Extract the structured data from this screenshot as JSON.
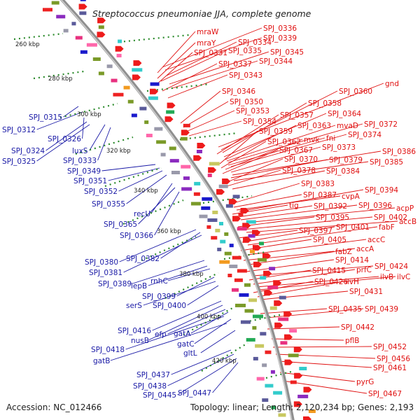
{
  "title": "Streptococcus pneumoniae JJA, complete genome",
  "footer": {
    "accession": "Accession: NC_012466",
    "summary": "Topology: linear; Length: 2,120,234 bp; Genes: 2,193"
  },
  "colors": {
    "left_labels": "#1a1aa6",
    "right_labels": "#e01010",
    "backbone": "#9a9a9a",
    "ticks": "#2a8a2a"
  },
  "scale_ticks": [
    "260 kbp",
    "280 kbp",
    "300 kbp",
    "320 kbp",
    "340 kbp",
    "360 kbp",
    "380 kbp",
    "400 kbp",
    "420 kbp"
  ],
  "left_labels": [
    "SPJ_0315",
    "SPJ_0312",
    "SPJ_0326",
    "SPJ_0324",
    "SPJ_0325",
    "luxS",
    "SPJ_0333",
    "SPJ_0349",
    "SPJ_0351",
    "SPJ_0352",
    "SPJ_0355",
    "recU",
    "SPJ_0365",
    "SPJ_0366",
    "SPJ_0380",
    "SPJ_0382",
    "SPJ_0381",
    "SPJ_0389",
    "lepB",
    "rnhC",
    "SPJ_0399",
    "serS",
    "SPJ_0400",
    "SPJ_0416",
    "nusB",
    "efp",
    "gatA",
    "SPJ_0418",
    "gatC",
    "gatB",
    "gltL",
    "SPJ_0437",
    "SPJ_0438",
    "SPJ_0445",
    "SPJ_0447"
  ],
  "right_labels": [
    "SPJ_0336",
    "SPJ_0339",
    "mraW",
    "SPJ_0334",
    "mraY",
    "SPJ_0335",
    "SPJ_0345",
    "SPJ_0331",
    "SPJ_0344",
    "SPJ_0337",
    "SPJ_0343",
    "SPJ_0346",
    "SPJ_0350",
    "SPJ_0353",
    "SPJ_0354",
    "gnd",
    "SPJ_0360",
    "SPJ_0358",
    "SPJ_0357",
    "SPJ_0364",
    "SPJ_0363",
    "mvaD",
    "SPJ_0372",
    "SPJ_0359",
    "fni",
    "SPJ_0374",
    "SPJ_0362",
    "mvk",
    "SPJ_0373",
    "SPJ_0367",
    "SPJ_0386",
    "SPJ_0379",
    "SPJ_0385",
    "SPJ_0370",
    "SPJ_0378",
    "SPJ_0384",
    "SPJ_0383",
    "SPJ_0387",
    "cvpA",
    "SPJ_0394",
    "tig",
    "SPJ_0392",
    "SPJ_0396",
    "acpP",
    "SPJ_0395",
    "SPJ_0402",
    "accB",
    "SPJ_0397",
    "SPJ_0401",
    "fabF",
    "SPJ_0405",
    "accC",
    "fabZ",
    "accA",
    "SPJ_0414",
    "SPJ_0424",
    "SPJ_0415",
    "prfC",
    "ilvB",
    "ilvC",
    "SPJ_0426",
    "ilvH",
    "SPJ_0431",
    "SPJ_0435",
    "SPJ_0439",
    "SPJ_0442",
    "pflB",
    "SPJ_0452",
    "SPJ_0456",
    "SPJ_0461",
    "pyrG",
    "SPJ_0467"
  ]
}
